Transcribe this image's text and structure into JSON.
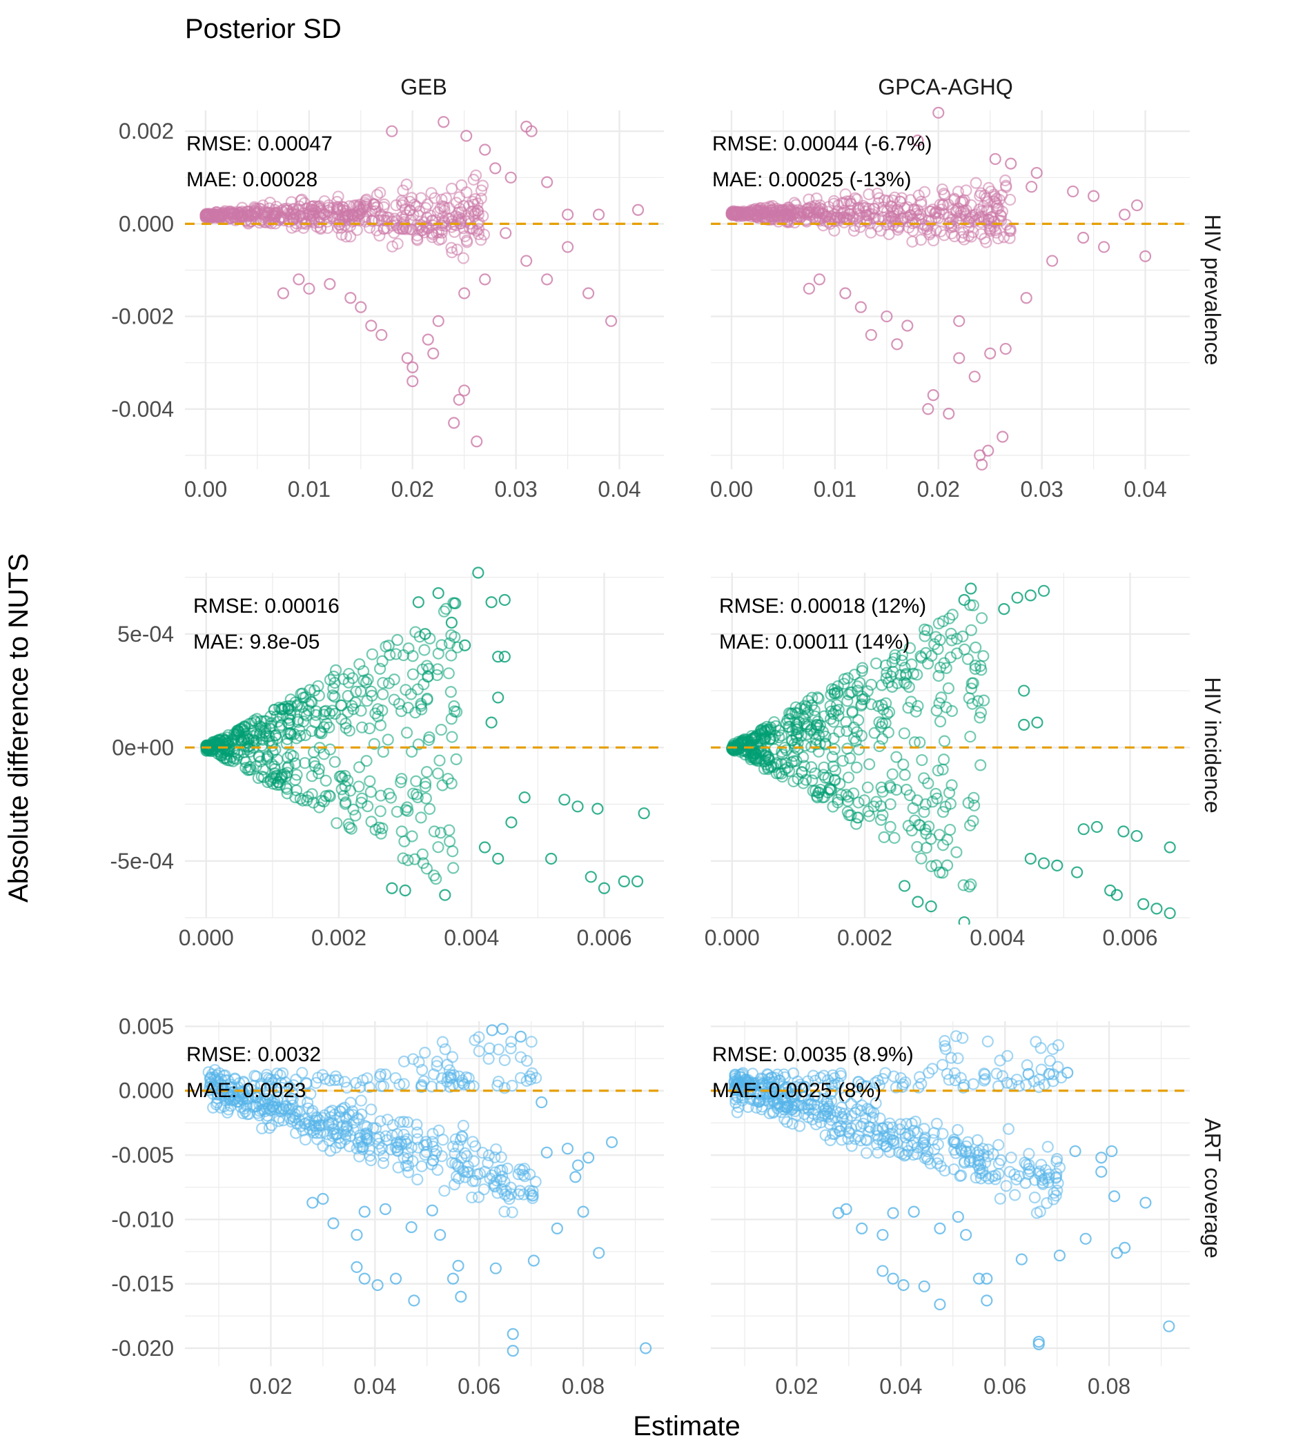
{
  "figure": {
    "title": "Posterior SD",
    "xlabel": "Estimate",
    "ylabel": "Absolute difference to NUTS",
    "columns": [
      "GEB",
      "GPCA-AGHQ"
    ],
    "reference_line_color": "#E69F00"
  },
  "chart_data": [
    {
      "type": "scatter",
      "row": "HIV prevalence",
      "color": "#CC79A7",
      "xlim": [
        -0.002,
        0.0443
      ],
      "ylim": [
        -0.0053,
        0.00245
      ],
      "x_ticks": [
        0,
        0.01,
        0.02,
        0.03,
        0.04
      ],
      "x_tick_labels": [
        "0.00",
        "0.01",
        "0.02",
        "0.03",
        "0.04"
      ],
      "y_ticks": [
        -0.004,
        -0.002,
        0,
        0.002
      ],
      "y_tick_labels": [
        "-0.004",
        "-0.002",
        "0.000",
        "0.002"
      ],
      "reference_y": 0,
      "panels": [
        {
          "column": "GEB",
          "annotations": [
            "RMSE: 0.00047",
            "MAE: 0.00028"
          ],
          "points": [
            [
              0.022,
              -0.0028
            ],
            [
              0.02,
              -0.0031
            ],
            [
              0.0245,
              -0.0038
            ],
            [
              0.024,
              -0.0043
            ],
            [
              0.0262,
              -0.0047
            ],
            [
              0.02,
              -0.0034
            ],
            [
              0.025,
              -0.0036
            ],
            [
              0.0392,
              -0.0021
            ],
            [
              0.0418,
              0.0003
            ],
            [
              0.038,
              0.0002
            ],
            [
              0.035,
              -0.0005
            ],
            [
              0.037,
              -0.0015
            ],
            [
              0.033,
              -0.0012
            ],
            [
              0.031,
              -0.0008
            ],
            [
              0.029,
              -0.0002
            ],
            [
              0.0295,
              0.001
            ],
            [
              0.027,
              0.0016
            ],
            [
              0.0252,
              0.0019
            ],
            [
              0.031,
              0.0021
            ],
            [
              0.0315,
              0.002
            ],
            [
              0.023,
              0.0022
            ],
            [
              0.018,
              0.002
            ],
            [
              0.016,
              -0.0022
            ],
            [
              0.017,
              -0.0024
            ],
            [
              0.015,
              -0.0018
            ],
            [
              0.014,
              -0.0016
            ],
            [
              0.012,
              -0.0013
            ],
            [
              0.0225,
              -0.0021
            ],
            [
              0.0215,
              -0.0025
            ],
            [
              0.0195,
              -0.0029
            ],
            [
              0.027,
              -0.0012
            ],
            [
              0.025,
              -0.0015
            ],
            [
              0.033,
              0.0009
            ],
            [
              0.035,
              0.0002
            ],
            [
              0.028,
              0.0012
            ],
            [
              0.009,
              -0.0012
            ],
            [
              0.01,
              -0.0014
            ],
            [
              0.0075,
              -0.0015
            ]
          ]
        },
        {
          "column": "GPCA-AGHQ",
          "annotations": [
            "RMSE: 0.00044 (-6.7%)",
            "MAE: 0.00025 (-13%)"
          ],
          "points": [
            [
              0.0242,
              -0.0052
            ],
            [
              0.0248,
              -0.0049
            ],
            [
              0.024,
              -0.005
            ],
            [
              0.0262,
              -0.0046
            ],
            [
              0.019,
              -0.004
            ],
            [
              0.021,
              -0.0041
            ],
            [
              0.0195,
              -0.0037
            ],
            [
              0.022,
              -0.0029
            ],
            [
              0.025,
              -0.0028
            ],
            [
              0.0235,
              -0.0033
            ],
            [
              0.0392,
              0.0004
            ],
            [
              0.04,
              -0.0007
            ],
            [
              0.038,
              0.0002
            ],
            [
              0.036,
              -0.0005
            ],
            [
              0.034,
              -0.0003
            ],
            [
              0.031,
              -0.0008
            ],
            [
              0.029,
              0.0008
            ],
            [
              0.027,
              0.0013
            ],
            [
              0.0255,
              0.0014
            ],
            [
              0.0295,
              0.0011
            ],
            [
              0.02,
              0.0024
            ],
            [
              0.018,
              0.0018
            ],
            [
              0.015,
              -0.002
            ],
            [
              0.017,
              -0.0022
            ],
            [
              0.0135,
              -0.0024
            ],
            [
              0.016,
              -0.0026
            ],
            [
              0.0125,
              -0.0018
            ],
            [
              0.011,
              -0.0015
            ],
            [
              0.0085,
              -0.0012
            ],
            [
              0.0075,
              -0.0014
            ],
            [
              0.0265,
              -0.0027
            ],
            [
              0.0285,
              -0.0016
            ],
            [
              0.033,
              0.0007
            ],
            [
              0.035,
              0.0006
            ],
            [
              0.022,
              -0.0021
            ]
          ]
        }
      ]
    },
    {
      "type": "scatter",
      "row": "HIV incidence",
      "color": "#009E73",
      "xlim": [
        -0.00032,
        0.0069
      ],
      "ylim": [
        -0.00075,
        0.00077
      ],
      "x_ticks": [
        0,
        0.002,
        0.004,
        0.006
      ],
      "x_tick_labels": [
        "0.000",
        "0.002",
        "0.004",
        "0.006"
      ],
      "y_ticks": [
        -0.0005,
        0,
        0.0005
      ],
      "y_tick_labels": [
        "-5e-04",
        "0e+00",
        "5e-04"
      ],
      "reference_y": 0,
      "panels": [
        {
          "column": "GEB",
          "annotations": [
            "RMSE: 0.00016",
            "MAE: 9.8e-05"
          ],
          "points": [
            [
              0.0041,
              0.00077
            ],
            [
              0.0066,
              -0.00029
            ],
            [
              0.0065,
              -0.00059
            ],
            [
              0.0063,
              -0.00059
            ],
            [
              0.006,
              -0.00062
            ],
            [
              0.0058,
              -0.00057
            ],
            [
              0.0052,
              -0.00049
            ],
            [
              0.0045,
              0.00065
            ],
            [
              0.0043,
              0.00064
            ],
            [
              0.0044,
              0.00022
            ],
            [
              0.0043,
              0.00011
            ],
            [
              0.0036,
              -0.00065
            ],
            [
              0.003,
              -0.00063
            ],
            [
              0.0028,
              -0.00062
            ],
            [
              0.0035,
              0.00068
            ],
            [
              0.0032,
              0.00064
            ],
            [
              0.0046,
              -0.00033
            ],
            [
              0.0048,
              -0.00022
            ],
            [
              0.0042,
              -0.00044
            ],
            [
              0.0044,
              -0.00049
            ],
            [
              0.0037,
              0.00055
            ],
            [
              0.0033,
              0.0005
            ],
            [
              0.0039,
              0.00045
            ],
            [
              0.0044,
              0.0004
            ],
            [
              0.0045,
              0.0004
            ],
            [
              0.0054,
              -0.00023
            ],
            [
              0.0056,
              -0.00026
            ],
            [
              0.0059,
              -0.00027
            ]
          ]
        },
        {
          "column": "GPCA-AGHQ",
          "annotations": [
            "RMSE: 0.00018 (12%)",
            "MAE: 0.00011 (14%)"
          ],
          "points": [
            [
              0.0066,
              -0.00073
            ],
            [
              0.0064,
              -0.00071
            ],
            [
              0.0062,
              -0.00069
            ],
            [
              0.0066,
              -0.00044
            ],
            [
              0.0058,
              -0.00065
            ],
            [
              0.0057,
              -0.00063
            ],
            [
              0.0052,
              -0.00055
            ],
            [
              0.0047,
              0.00069
            ],
            [
              0.0045,
              0.00067
            ],
            [
              0.0043,
              0.00066
            ],
            [
              0.0044,
              0.00025
            ],
            [
              0.0046,
              0.00011
            ],
            [
              0.0044,
              0.0001
            ],
            [
              0.0035,
              -0.00077
            ],
            [
              0.003,
              -0.0007
            ],
            [
              0.0028,
              -0.00068
            ],
            [
              0.0026,
              -0.00061
            ],
            [
              0.0035,
              0.00065
            ],
            [
              0.0036,
              0.0007
            ],
            [
              0.0041,
              0.00061
            ],
            [
              0.0045,
              -0.00049
            ],
            [
              0.0047,
              -0.00051
            ],
            [
              0.0049,
              -0.00052
            ],
            [
              0.0053,
              -0.00036
            ],
            [
              0.0055,
              -0.00035
            ],
            [
              0.0059,
              -0.00037
            ],
            [
              0.0061,
              -0.00039
            ]
          ]
        }
      ]
    },
    {
      "type": "scatter",
      "row": "ART coverage",
      "color": "#56B4E9",
      "xlim": [
        0.0035,
        0.0955
      ],
      "ylim": [
        -0.0214,
        0.0054
      ],
      "x_ticks": [
        0.02,
        0.04,
        0.06,
        0.08
      ],
      "x_tick_labels": [
        "0.02",
        "0.04",
        "0.06",
        "0.08"
      ],
      "y_ticks": [
        -0.02,
        -0.015,
        -0.01,
        -0.005,
        0,
        0.005
      ],
      "y_tick_labels": [
        "-0.020",
        "-0.015",
        "-0.010",
        "-0.005",
        "0.000",
        "0.005"
      ],
      "reference_y": 0,
      "panels": [
        {
          "column": "GEB",
          "annotations": [
            "RMSE: 0.0032",
            "MAE: 0.0023"
          ],
          "points": [
            [
              0.092,
              -0.02
            ],
            [
              0.0665,
              -0.0202
            ],
            [
              0.0665,
              -0.0189
            ],
            [
              0.0475,
              -0.0163
            ],
            [
              0.0405,
              -0.0151
            ],
            [
              0.038,
              -0.0146
            ],
            [
              0.0365,
              -0.0137
            ],
            [
              0.044,
              -0.0146
            ],
            [
              0.055,
              -0.0146
            ],
            [
              0.0565,
              -0.016
            ],
            [
              0.056,
              -0.0136
            ],
            [
              0.0632,
              -0.0138
            ],
            [
              0.0705,
              -0.0132
            ],
            [
              0.083,
              -0.0126
            ],
            [
              0.075,
              -0.0107
            ],
            [
              0.0525,
              -0.0112
            ],
            [
              0.047,
              -0.0106
            ],
            [
              0.051,
              -0.0093
            ],
            [
              0.0855,
              -0.004
            ],
            [
              0.0785,
              -0.0067
            ],
            [
              0.08,
              -0.0094
            ],
            [
              0.0645,
              0.0048
            ],
            [
              0.068,
              0.0042
            ],
            [
              0.0625,
              0.0047
            ],
            [
              0.072,
              -0.0009
            ],
            [
              0.0365,
              -0.0112
            ],
            [
              0.032,
              -0.0103
            ],
            [
              0.03,
              -0.0084
            ],
            [
              0.028,
              -0.0087
            ],
            [
              0.038,
              -0.0094
            ],
            [
              0.042,
              -0.0092
            ],
            [
              0.073,
              -0.0048
            ],
            [
              0.079,
              -0.0058
            ],
            [
              0.077,
              -0.0045
            ],
            [
              0.081,
              -0.0052
            ]
          ]
        },
        {
          "column": "GPCA-AGHQ",
          "annotations": [
            "RMSE: 0.0035 (8.9%)",
            "MAE: 0.0025 (8%)"
          ],
          "points": [
            [
              0.0915,
              -0.0183
            ],
            [
              0.0665,
              -0.0195
            ],
            [
              0.0665,
              -0.0197
            ],
            [
              0.0475,
              -0.0166
            ],
            [
              0.0405,
              -0.0151
            ],
            [
              0.0385,
              -0.0146
            ],
            [
              0.0365,
              -0.014
            ],
            [
              0.0445,
              -0.0152
            ],
            [
              0.055,
              -0.0146
            ],
            [
              0.0565,
              -0.0163
            ],
            [
              0.0565,
              -0.0146
            ],
            [
              0.0632,
              -0.0131
            ],
            [
              0.0705,
              -0.0128
            ],
            [
              0.083,
              -0.0122
            ],
            [
              0.0815,
              -0.0126
            ],
            [
              0.0755,
              -0.0115
            ],
            [
              0.0525,
              -0.0112
            ],
            [
              0.0475,
              -0.0107
            ],
            [
              0.051,
              -0.0098
            ],
            [
              0.087,
              -0.0087
            ],
            [
              0.0785,
              -0.0063
            ],
            [
              0.081,
              -0.0082
            ],
            [
              0.0645,
              0.0013
            ],
            [
              0.0685,
              0.0013
            ],
            [
              0.072,
              0.0014
            ],
            [
              0.0365,
              -0.0112
            ],
            [
              0.0325,
              -0.0107
            ],
            [
              0.0295,
              -0.0092
            ],
            [
              0.028,
              -0.0095
            ],
            [
              0.0385,
              -0.0095
            ],
            [
              0.0425,
              -0.0094
            ],
            [
              0.0735,
              -0.0047
            ],
            [
              0.0785,
              -0.0052
            ],
            [
              0.0805,
              -0.0047
            ]
          ]
        }
      ]
    }
  ]
}
